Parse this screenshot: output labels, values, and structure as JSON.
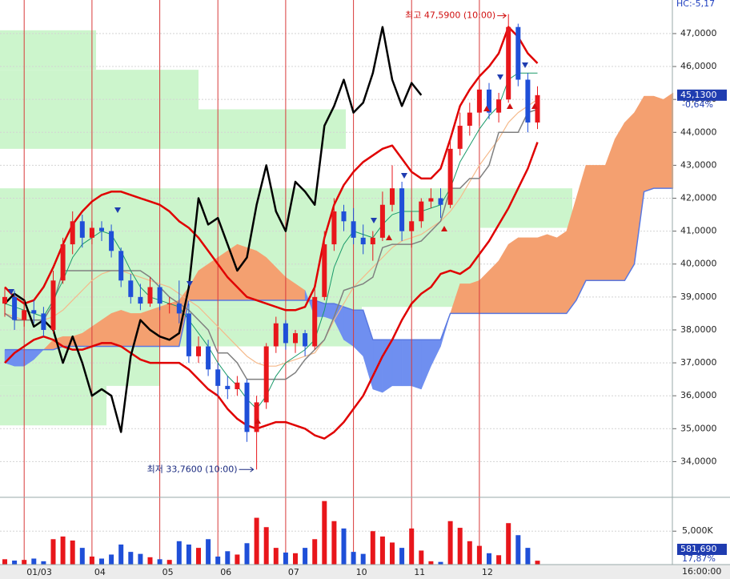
{
  "chart_data": {
    "type": "candlestick",
    "header_label": "HC:-5,17",
    "categories": [
      null,
      null,
      "01/03",
      null,
      null,
      null,
      null,
      null,
      null,
      "04",
      null,
      null,
      null,
      null,
      null,
      null,
      "05",
      null,
      null,
      null,
      null,
      null,
      "06",
      null,
      null,
      null,
      null,
      null,
      null,
      "07",
      null,
      null,
      null,
      null,
      null,
      null,
      "10",
      null,
      null,
      null,
      null,
      null,
      "11",
      null,
      null,
      null,
      null,
      null,
      null,
      "12",
      null,
      null,
      null,
      null,
      null,
      null
    ],
    "open": [
      38.8,
      39.0,
      38.3,
      38.6,
      38.5,
      38.0,
      39.5,
      40.6,
      41.3,
      40.8,
      41.1,
      41.0,
      40.4,
      39.5,
      39.0,
      38.8,
      39.3,
      38.8,
      38.8,
      38.5,
      37.2,
      37.5,
      36.8,
      36.3,
      36.2,
      36.4,
      34.9,
      35.8,
      37.5,
      38.2,
      37.6,
      37.9,
      37.5,
      39.0,
      40.6,
      41.6,
      41.3,
      40.8,
      40.6,
      40.8,
      41.8,
      42.3,
      41.0,
      41.3,
      41.9,
      42.0,
      41.8,
      43.5,
      44.2,
      44.6,
      45.3,
      44.6,
      45.0,
      47.2,
      45.6,
      44.3
    ],
    "high": [
      39.3,
      39.2,
      38.9,
      38.9,
      38.7,
      39.8,
      40.8,
      41.6,
      41.5,
      41.3,
      41.3,
      41.2,
      40.5,
      39.7,
      39.4,
      39.6,
      39.4,
      39.0,
      39.5,
      38.8,
      37.8,
      37.7,
      37.0,
      36.6,
      36.6,
      36.5,
      36.0,
      37.6,
      38.4,
      38.3,
      38.0,
      38.0,
      39.3,
      41.0,
      42.0,
      41.8,
      41.7,
      41.2,
      41.0,
      42.2,
      43.0,
      42.5,
      41.6,
      42.0,
      42.3,
      42.3,
      43.8,
      44.6,
      44.9,
      45.6,
      45.5,
      45.2,
      47.59,
      47.3,
      45.8,
      45.4
    ],
    "low": [
      38.4,
      38.0,
      38.1,
      38.2,
      37.8,
      37.9,
      39.4,
      40.3,
      40.5,
      40.6,
      40.7,
      40.2,
      39.3,
      38.8,
      38.6,
      38.7,
      38.6,
      38.5,
      38.2,
      37.0,
      37.0,
      36.6,
      36.0,
      35.9,
      36.0,
      34.6,
      33.76,
      35.6,
      37.3,
      37.4,
      37.3,
      37.2,
      37.4,
      38.9,
      40.4,
      41.0,
      40.6,
      40.3,
      40.1,
      40.7,
      41.6,
      40.7,
      40.5,
      41.1,
      41.7,
      41.4,
      41.7,
      43.3,
      43.9,
      44.2,
      44.4,
      44.3,
      44.9,
      45.4,
      44.0,
      44.1
    ],
    "close": [
      39.0,
      38.3,
      38.6,
      38.5,
      38.0,
      39.5,
      40.6,
      41.3,
      40.8,
      41.1,
      41.0,
      40.4,
      39.5,
      39.0,
      38.8,
      39.3,
      38.8,
      38.8,
      38.5,
      37.2,
      37.5,
      36.8,
      36.3,
      36.2,
      36.4,
      34.9,
      35.8,
      37.5,
      38.2,
      37.6,
      37.9,
      37.5,
      39.0,
      40.6,
      41.6,
      41.3,
      40.8,
      40.6,
      40.8,
      41.8,
      42.3,
      41.0,
      41.3,
      41.9,
      42.0,
      41.8,
      43.5,
      44.2,
      44.6,
      45.3,
      44.6,
      45.0,
      47.2,
      45.6,
      44.3,
      45.13
    ],
    "up_color": "#e8161b",
    "down_color": "#1f4fd8",
    "ylim": [
      32.94,
      48.02
    ],
    "yticks": [
      {
        "value": 34,
        "label": "34,0000"
      },
      {
        "value": 35,
        "label": "35,0000"
      },
      {
        "value": 36,
        "label": "36,0000"
      },
      {
        "value": 37,
        "label": "37,0000"
      },
      {
        "value": 38,
        "label": "38,0000"
      },
      {
        "value": 39,
        "label": "39,0000"
      },
      {
        "value": 40,
        "label": "40,0000"
      },
      {
        "value": 41,
        "label": "41,0000"
      },
      {
        "value": 42,
        "label": "42,0000"
      },
      {
        "value": 43,
        "label": "43,0000"
      },
      {
        "value": 44,
        "label": "44,0000"
      },
      {
        "value": 45,
        "label": "45,0000"
      },
      {
        "value": 46,
        "label": "46,0000"
      },
      {
        "value": 47,
        "label": "47,0000"
      }
    ],
    "grid": true,
    "last_price": {
      "value": 45.13,
      "label": "45,1300"
    },
    "change_label": "-0,64%",
    "high_annotation": "최고 47,5900 (10:00)",
    "low_annotation": "최저 33,7600 (10:00)",
    "bollinger_upper": {
      "color": "#e00000",
      "values": [
        39.3,
        39.0,
        38.8,
        38.9,
        39.3,
        39.9,
        40.6,
        41.2,
        41.6,
        41.9,
        42.1,
        42.2,
        42.2,
        42.1,
        42.0,
        41.9,
        41.8,
        41.6,
        41.3,
        41.1,
        40.8,
        40.4,
        40.0,
        39.6,
        39.3,
        39.0,
        38.9,
        38.8,
        38.7,
        38.6,
        38.6,
        38.7,
        39.3,
        40.8,
        41.8,
        42.4,
        42.8,
        43.1,
        43.3,
        43.5,
        43.6,
        43.2,
        42.8,
        42.6,
        42.6,
        42.9,
        43.8,
        44.8,
        45.3,
        45.7,
        46.0,
        46.4,
        47.2,
        46.9,
        46.4,
        46.1
      ]
    },
    "bollinger_lower": {
      "color": "#e00000",
      "values": [
        37.0,
        37.3,
        37.5,
        37.7,
        37.8,
        37.7,
        37.5,
        37.4,
        37.4,
        37.5,
        37.6,
        37.6,
        37.5,
        37.3,
        37.1,
        37.0,
        37.0,
        37.0,
        37.0,
        36.8,
        36.5,
        36.2,
        36.0,
        35.6,
        35.3,
        35.1,
        35.0,
        35.1,
        35.2,
        35.2,
        35.1,
        35.0,
        34.8,
        34.7,
        34.9,
        35.2,
        35.6,
        36.0,
        36.6,
        37.2,
        37.7,
        38.3,
        38.8,
        39.1,
        39.3,
        39.7,
        39.8,
        39.7,
        39.9,
        40.3,
        40.7,
        41.2,
        41.7,
        42.3,
        42.9,
        43.7
      ]
    },
    "lagging_span": {
      "color": "#000000",
      "values": [
        38.8,
        39.1,
        38.9,
        38.1,
        38.3,
        38.0,
        37.0,
        37.8,
        37.0,
        36.0,
        36.2,
        36.0,
        34.9,
        37.2,
        38.3,
        38.0,
        37.8,
        37.7,
        37.9,
        39.3,
        42.0,
        41.2,
        41.4,
        40.6,
        39.8,
        40.2,
        41.8,
        43.0,
        41.6,
        41.0,
        42.5,
        42.2,
        41.8,
        44.2,
        44.8,
        45.6,
        44.6,
        44.9,
        45.8,
        47.2,
        45.6,
        44.8,
        45.5,
        45.13,
        null,
        null,
        null,
        null,
        null,
        null,
        null,
        null,
        null,
        null,
        null,
        null
      ]
    },
    "conversion_line": {
      "color": "#1a9a6a",
      "values": [
        38.8,
        38.7,
        38.6,
        38.5,
        38.4,
        38.9,
        39.5,
        40.2,
        40.6,
        40.8,
        41.0,
        40.9,
        40.4,
        39.8,
        39.3,
        39.0,
        38.9,
        38.8,
        38.7,
        38.3,
        37.9,
        37.5,
        37.0,
        36.6,
        36.3,
        35.9,
        35.6,
        36.0,
        36.6,
        37.0,
        37.2,
        37.4,
        37.7,
        38.6,
        39.9,
        40.6,
        41.0,
        40.9,
        40.8,
        41.2,
        41.5,
        41.6,
        41.6,
        41.6,
        41.7,
        41.8,
        42.3,
        43.1,
        43.6,
        44.1,
        44.5,
        44.8,
        45.6,
        45.8,
        45.8,
        45.8
      ]
    },
    "base_line": {
      "color": "#808080",
      "values": [
        38.5,
        38.3,
        38.3,
        38.3,
        38.3,
        38.8,
        39.8,
        39.8,
        39.8,
        39.8,
        39.8,
        39.8,
        39.8,
        39.8,
        39.8,
        39.6,
        39.3,
        39.0,
        38.8,
        38.6,
        38.3,
        38.0,
        37.3,
        37.3,
        37.0,
        36.5,
        36.5,
        36.5,
        36.5,
        36.5,
        36.7,
        37.1,
        37.4,
        37.7,
        38.4,
        39.2,
        39.3,
        39.4,
        39.6,
        40.5,
        40.6,
        40.6,
        40.6,
        40.7,
        41.0,
        41.3,
        42.3,
        42.3,
        42.6,
        42.6,
        43.0,
        44.0,
        44.0,
        44.0,
        44.6,
        44.7
      ]
    },
    "moving_average": {
      "color": "#f5b98a",
      "values": [
        38.5,
        38.4,
        38.3,
        38.3,
        38.3,
        38.4,
        38.6,
        38.9,
        39.2,
        39.5,
        39.7,
        39.8,
        39.8,
        39.7,
        39.6,
        39.5,
        39.4,
        39.3,
        39.1,
        38.9,
        38.7,
        38.4,
        38.1,
        37.8,
        37.5,
        37.2,
        37.0,
        36.9,
        36.9,
        37.0,
        37.1,
        37.2,
        37.3,
        37.7,
        38.3,
        38.8,
        39.3,
        39.6,
        39.9,
        40.2,
        40.5,
        40.7,
        40.8,
        40.9,
        41.1,
        41.3,
        41.6,
        42.0,
        42.5,
        43.0,
        43.4,
        43.8,
        44.3,
        44.6,
        44.8,
        45.0
      ]
    },
    "ichimoku_cloud": {
      "up_color": "#f4a070",
      "down_color": "#6f8ff0",
      "line_color": "#5a78e0",
      "span_a": [
        37.0,
        36.9,
        36.9,
        37.1,
        37.4,
        37.7,
        37.8,
        37.8,
        37.9,
        38.1,
        38.3,
        38.5,
        38.6,
        38.5,
        38.5,
        38.6,
        38.7,
        38.8,
        38.9,
        39.3,
        39.8,
        40.0,
        40.2,
        40.4,
        40.6,
        40.5,
        40.4,
        40.2,
        39.9,
        39.6,
        39.4,
        39.2,
        38.4,
        38.4,
        38.3,
        37.7,
        37.5,
        37.2,
        36.2,
        36.1,
        36.3,
        36.3,
        36.3,
        36.2,
        36.9,
        37.5,
        38.5,
        39.4,
        39.4,
        39.5,
        39.8,
        40.1,
        40.6,
        40.8,
        40.8,
        40.8,
        40.9,
        40.8,
        41.0,
        42.0,
        43.0,
        43.0,
        43.0,
        43.8,
        44.3,
        44.6,
        45.1,
        45.1,
        45.0,
        45.2
      ],
      "span_b": [
        37.4,
        37.4,
        37.4,
        37.4,
        37.4,
        37.4,
        37.5,
        37.5,
        37.5,
        37.5,
        37.5,
        37.5,
        37.5,
        37.5,
        37.5,
        37.5,
        37.5,
        37.5,
        37.5,
        38.9,
        38.9,
        38.9,
        38.9,
        38.9,
        38.9,
        38.9,
        38.9,
        38.9,
        38.9,
        38.9,
        38.9,
        38.9,
        38.9,
        38.8,
        38.8,
        38.7,
        38.6,
        38.6,
        37.7,
        37.7,
        37.7,
        37.7,
        37.7,
        37.7,
        37.7,
        37.7,
        38.5,
        38.5,
        38.5,
        38.5,
        38.5,
        38.5,
        38.5,
        38.5,
        38.5,
        38.5,
        38.5,
        38.5,
        38.5,
        38.9,
        39.5,
        39.5,
        39.5,
        39.5,
        39.5,
        40.0,
        42.2,
        42.3,
        42.3,
        42.3
      ]
    },
    "volume_profile": {
      "color": "#ccf5cc",
      "bins": [
        33.9,
        35.1,
        36.3,
        37.5,
        38.7,
        39.9,
        41.1,
        42.3,
        43.5,
        44.7,
        45.9,
        47.1
      ],
      "values": [
        0,
        133,
        200,
        452,
        600,
        600,
        715,
        0,
        432,
        248,
        120
      ]
    },
    "volume": {
      "values": [
        800,
        600,
        700,
        900,
        500,
        3800,
        4200,
        3600,
        2500,
        1200,
        900,
        1500,
        3000,
        1900,
        1600,
        1100,
        800,
        700,
        3500,
        3000,
        2500,
        3800,
        1200,
        2000,
        1500,
        3200,
        7000,
        5600,
        2500,
        1800,
        1700,
        2500,
        3800,
        9500,
        6500,
        5400,
        1900,
        1600,
        5000,
        4200,
        3300,
        2500,
        5400,
        2100,
        500,
        400,
        6500,
        5500,
        3500,
        2800,
        1700,
        1400,
        6200,
        4400,
        2500,
        581.69
      ],
      "ylim": [
        0,
        9700
      ],
      "yticks": [
        {
          "value": 5000,
          "label": "5,000K"
        }
      ],
      "last_label": "581,690",
      "ratio_label": "17,87%"
    },
    "time_label": "16:00:00"
  }
}
